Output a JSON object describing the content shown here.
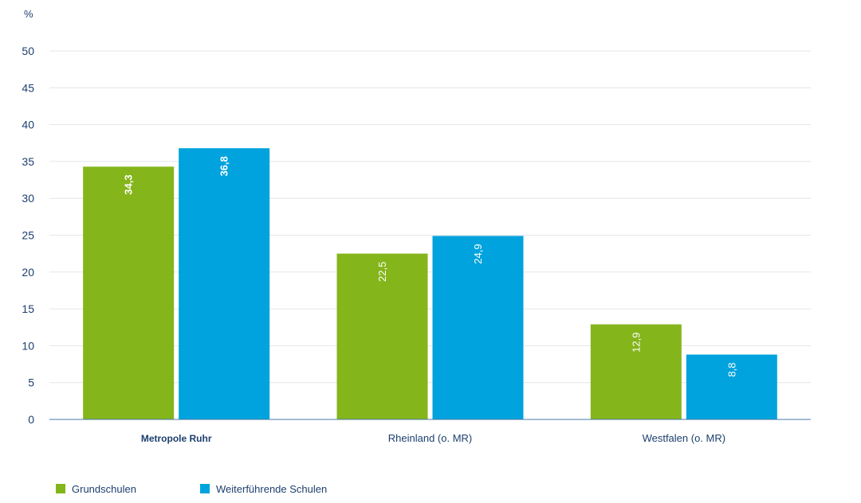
{
  "chart_data": {
    "type": "bar",
    "unit_label": "%",
    "categories": [
      "Metropole Ruhr",
      "Rheinland (o. MR)",
      "Westfalen (o. MR)"
    ],
    "highlight_category": "Metropole Ruhr",
    "series": [
      {
        "name": "Grundschulen",
        "values": [
          34.3,
          22.5,
          12.9
        ],
        "value_labels": [
          "34,3",
          "22,5",
          "12,9"
        ],
        "color": "#84b51b"
      },
      {
        "name": "Weiterführende Schulen",
        "values": [
          36.8,
          24.9,
          8.8
        ],
        "value_labels": [
          "36,8",
          "24,9",
          "8,8"
        ],
        "color": "#00a3dd"
      }
    ],
    "ylim": [
      0,
      50
    ],
    "yticks": [
      0,
      5,
      10,
      15,
      20,
      25,
      30,
      35,
      40,
      45,
      50
    ],
    "grid": true,
    "legend_position": "bottom-left",
    "title": "",
    "xlabel": "",
    "ylabel": ""
  },
  "colors": {
    "axis_text": "#1c3f6e",
    "grid": "#e3e6ea",
    "baseline": "#4a78a8"
  }
}
